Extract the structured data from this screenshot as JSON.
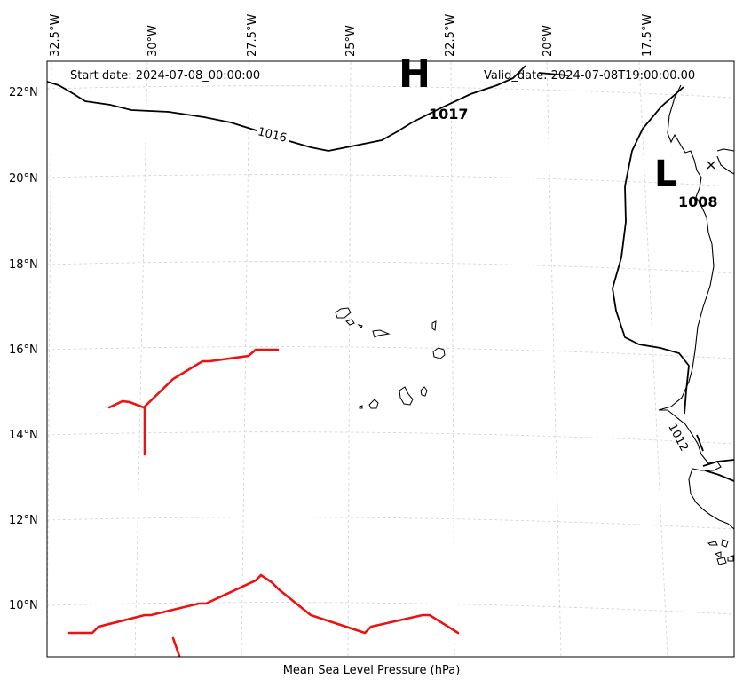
{
  "header": {
    "start_date": "Start date: 2024-07-08_00:00:00",
    "valid_date": "Valid_date: 2024-07-08T19:00:00.00"
  },
  "caption": "Mean Sea Level Pressure (hPa)",
  "axes": {
    "longitude_labels": [
      "32.5°W",
      "30°W",
      "27.5°W",
      "25°W",
      "22.5°W",
      "20°W",
      "17.5°W"
    ],
    "latitude_labels": [
      "22°N",
      "20°N",
      "18°N",
      "16°N",
      "14°N",
      "12°N",
      "10°N"
    ],
    "grid": true
  },
  "isobars": [
    {
      "label": "1016"
    },
    {
      "label": "1012"
    }
  ],
  "pressure_centers": [
    {
      "type": "H",
      "value": "1017"
    },
    {
      "type": "L",
      "value": "1008"
    }
  ],
  "colors": {
    "isobar": "#000000",
    "front": "#ee1111",
    "coastline": "#000000",
    "gridline": "#cccccc"
  }
}
